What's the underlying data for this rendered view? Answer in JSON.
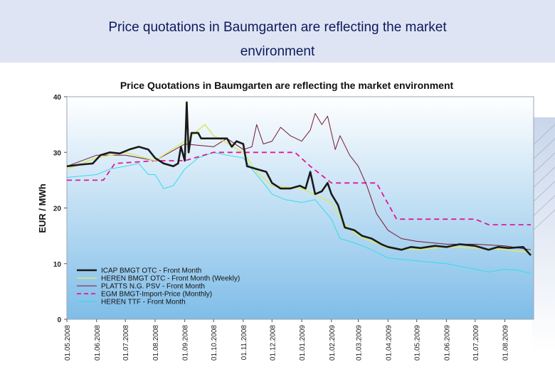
{
  "slide": {
    "title_line1": "Price quotations in Baumgarten are reflecting the market",
    "title_line2": "environment"
  },
  "chart_data": {
    "type": "line",
    "title": "Price Quotations in Baumgarten are reflecting the market environment",
    "ylabel": "EUR / MWh",
    "ylim": [
      0,
      40
    ],
    "yticks": [
      0,
      10,
      20,
      30,
      40
    ],
    "xlim": [
      "2008-05-01",
      "2009-08-31"
    ],
    "xticks": [
      "01.05.2008",
      "01.06.2008",
      "01.07.2008",
      "01.08.2008",
      "01.09.2008",
      "01.10.2008",
      "01.11.2008",
      "01.12.2008",
      "01.01.2009",
      "01.02.2009",
      "01.03.2009",
      "01.04.2009",
      "01.05.2009",
      "01.06.2009",
      "01.07.2009",
      "01.08.2009"
    ],
    "grid": false,
    "legend_position": "bottom-left",
    "plot_background": [
      "#ffffff",
      "#7fbde8"
    ],
    "series": [
      {
        "name": "ICAP BMGT OTC - Front Month",
        "color": "#1a1a1a",
        "style": "solid-thick",
        "points": [
          [
            "2008-05-01",
            27.5
          ],
          [
            "2008-05-15",
            27.8
          ],
          [
            "2008-05-28",
            28.0
          ],
          [
            "2008-06-05",
            29.5
          ],
          [
            "2008-06-15",
            30.0
          ],
          [
            "2008-06-25",
            29.8
          ],
          [
            "2008-07-05",
            30.5
          ],
          [
            "2008-07-15",
            31.0
          ],
          [
            "2008-07-25",
            30.5
          ],
          [
            "2008-08-01",
            29.0
          ],
          [
            "2008-08-10",
            28.0
          ],
          [
            "2008-08-20",
            27.5
          ],
          [
            "2008-08-25",
            28.0
          ],
          [
            "2008-08-28",
            31.0
          ],
          [
            "2008-09-01",
            28.5
          ],
          [
            "2008-09-03",
            39.0
          ],
          [
            "2008-09-05",
            30.0
          ],
          [
            "2008-09-08",
            33.5
          ],
          [
            "2008-09-15",
            33.5
          ],
          [
            "2008-09-18",
            32.5
          ],
          [
            "2008-10-01",
            32.5
          ],
          [
            "2008-10-15",
            32.5
          ],
          [
            "2008-10-20",
            31.0
          ],
          [
            "2008-10-25",
            32.0
          ],
          [
            "2008-11-01",
            31.5
          ],
          [
            "2008-11-05",
            27.5
          ],
          [
            "2008-11-15",
            27.0
          ],
          [
            "2008-11-25",
            26.5
          ],
          [
            "2008-12-01",
            24.5
          ],
          [
            "2008-12-10",
            23.5
          ],
          [
            "2008-12-20",
            23.5
          ],
          [
            "2008-12-30",
            24.0
          ],
          [
            "2009-01-05",
            23.5
          ],
          [
            "2009-01-10",
            26.5
          ],
          [
            "2009-01-15",
            22.5
          ],
          [
            "2009-01-22",
            23.0
          ],
          [
            "2009-01-28",
            24.5
          ],
          [
            "2009-02-01",
            22.5
          ],
          [
            "2009-02-08",
            20.5
          ],
          [
            "2009-02-15",
            16.5
          ],
          [
            "2009-02-25",
            16.0
          ],
          [
            "2009-03-05",
            15.0
          ],
          [
            "2009-03-15",
            14.5
          ],
          [
            "2009-03-25",
            13.5
          ],
          [
            "2009-04-01",
            13.0
          ],
          [
            "2009-04-15",
            12.5
          ],
          [
            "2009-04-25",
            13.0
          ],
          [
            "2009-05-05",
            12.8
          ],
          [
            "2009-05-20",
            13.2
          ],
          [
            "2009-06-01",
            13.0
          ],
          [
            "2009-06-15",
            13.5
          ],
          [
            "2009-07-01",
            13.2
          ],
          [
            "2009-07-15",
            12.5
          ],
          [
            "2009-07-25",
            13.0
          ],
          [
            "2009-08-05",
            12.8
          ],
          [
            "2009-08-20",
            13.0
          ],
          [
            "2009-08-28",
            11.5
          ]
        ]
      },
      {
        "name": "HEREN BMGT OTC - Front Month (Weekly)",
        "color": "#d8e870",
        "style": "solid",
        "points": [
          [
            "2008-05-01",
            27.0
          ],
          [
            "2008-06-01",
            29.0
          ],
          [
            "2008-07-01",
            30.0
          ],
          [
            "2008-08-01",
            28.5
          ],
          [
            "2008-09-01",
            32.0
          ],
          [
            "2008-09-22",
            35.0
          ],
          [
            "2008-10-01",
            33.0
          ],
          [
            "2008-11-01",
            30.0
          ],
          [
            "2008-11-15",
            26.5
          ],
          [
            "2008-12-01",
            24.0
          ],
          [
            "2009-01-01",
            23.5
          ],
          [
            "2009-02-01",
            21.0
          ],
          [
            "2009-02-15",
            17.0
          ],
          [
            "2009-03-01",
            15.0
          ],
          [
            "2009-04-01",
            12.8
          ],
          [
            "2009-05-01",
            12.5
          ],
          [
            "2009-06-01",
            13.0
          ],
          [
            "2009-07-01",
            12.8
          ],
          [
            "2009-08-01",
            12.5
          ],
          [
            "2009-08-28",
            12.0
          ]
        ]
      },
      {
        "name": "PLATTS N.G. PSV - Front Month",
        "color": "#7a1630",
        "style": "solid-thin",
        "points": [
          [
            "2008-05-01",
            27.5
          ],
          [
            "2008-06-01",
            29.5
          ],
          [
            "2008-07-01",
            29.5
          ],
          [
            "2008-08-01",
            28.5
          ],
          [
            "2008-09-01",
            31.5
          ],
          [
            "2008-10-01",
            31.0
          ],
          [
            "2008-10-15",
            32.5
          ],
          [
            "2008-11-01",
            30.5
          ],
          [
            "2008-11-10",
            31.0
          ],
          [
            "2008-11-15",
            35.0
          ],
          [
            "2008-11-22",
            31.5
          ],
          [
            "2008-12-01",
            32.0
          ],
          [
            "2008-12-10",
            34.5
          ],
          [
            "2008-12-20",
            33.0
          ],
          [
            "2009-01-01",
            32.0
          ],
          [
            "2009-01-10",
            34.0
          ],
          [
            "2009-01-15",
            37.0
          ],
          [
            "2009-01-22",
            35.0
          ],
          [
            "2009-01-28",
            36.5
          ],
          [
            "2009-02-05",
            30.5
          ],
          [
            "2009-02-10",
            33.0
          ],
          [
            "2009-02-20",
            29.5
          ],
          [
            "2009-03-01",
            27.5
          ],
          [
            "2009-03-10",
            24.0
          ],
          [
            "2009-03-20",
            19.0
          ],
          [
            "2009-04-01",
            16.0
          ],
          [
            "2009-04-15",
            14.5
          ],
          [
            "2009-05-01",
            14.0
          ],
          [
            "2009-06-01",
            13.5
          ],
          [
            "2009-07-01",
            13.5
          ],
          [
            "2009-08-01",
            13.2
          ],
          [
            "2009-08-28",
            12.5
          ]
        ]
      },
      {
        "name": "EGM BMGT-Import-Price (Monthly)",
        "color": "#e0189a",
        "style": "dashed",
        "points": [
          [
            "2008-05-01",
            25.0
          ],
          [
            "2008-06-01",
            25.0
          ],
          [
            "2008-06-08",
            25.0
          ],
          [
            "2008-06-20",
            28.0
          ],
          [
            "2008-08-01",
            28.5
          ],
          [
            "2008-09-01",
            28.5
          ],
          [
            "2008-10-01",
            30.0
          ],
          [
            "2008-11-01",
            30.0
          ],
          [
            "2008-12-01",
            30.0
          ],
          [
            "2008-12-25",
            30.0
          ],
          [
            "2009-01-10",
            27.5
          ],
          [
            "2009-02-01",
            24.5
          ],
          [
            "2009-03-01",
            24.5
          ],
          [
            "2009-03-20",
            24.5
          ],
          [
            "2009-04-10",
            18.0
          ],
          [
            "2009-05-01",
            18.0
          ],
          [
            "2009-07-01",
            18.0
          ],
          [
            "2009-07-15",
            17.0
          ],
          [
            "2009-08-28",
            17.0
          ]
        ]
      },
      {
        "name": "HEREN TTF - Front Month",
        "color": "#33dcec",
        "style": "solid-thin",
        "points": [
          [
            "2008-05-01",
            25.5
          ],
          [
            "2008-06-01",
            26.0
          ],
          [
            "2008-06-15",
            27.0
          ],
          [
            "2008-07-01",
            27.5
          ],
          [
            "2008-07-15",
            28.0
          ],
          [
            "2008-07-25",
            26.0
          ],
          [
            "2008-08-01",
            26.0
          ],
          [
            "2008-08-10",
            23.5
          ],
          [
            "2008-08-20",
            24.0
          ],
          [
            "2008-09-01",
            27.0
          ],
          [
            "2008-09-15",
            29.0
          ],
          [
            "2008-10-01",
            30.0
          ],
          [
            "2008-10-15",
            29.5
          ],
          [
            "2008-11-01",
            29.0
          ],
          [
            "2008-11-10",
            27.0
          ],
          [
            "2008-11-20",
            25.0
          ],
          [
            "2008-12-01",
            22.5
          ],
          [
            "2008-12-15",
            21.5
          ],
          [
            "2009-01-01",
            21.0
          ],
          [
            "2009-01-15",
            21.5
          ],
          [
            "2009-02-01",
            18.0
          ],
          [
            "2009-02-10",
            14.5
          ],
          [
            "2009-02-20",
            14.0
          ],
          [
            "2009-03-01",
            13.5
          ],
          [
            "2009-03-15",
            12.5
          ],
          [
            "2009-04-01",
            11.0
          ],
          [
            "2009-05-01",
            10.5
          ],
          [
            "2009-06-01",
            10.0
          ],
          [
            "2009-07-01",
            9.0
          ],
          [
            "2009-07-15",
            8.5
          ],
          [
            "2009-08-01",
            9.0
          ],
          [
            "2009-08-15",
            8.8
          ],
          [
            "2009-08-28",
            8.2
          ]
        ]
      }
    ]
  }
}
